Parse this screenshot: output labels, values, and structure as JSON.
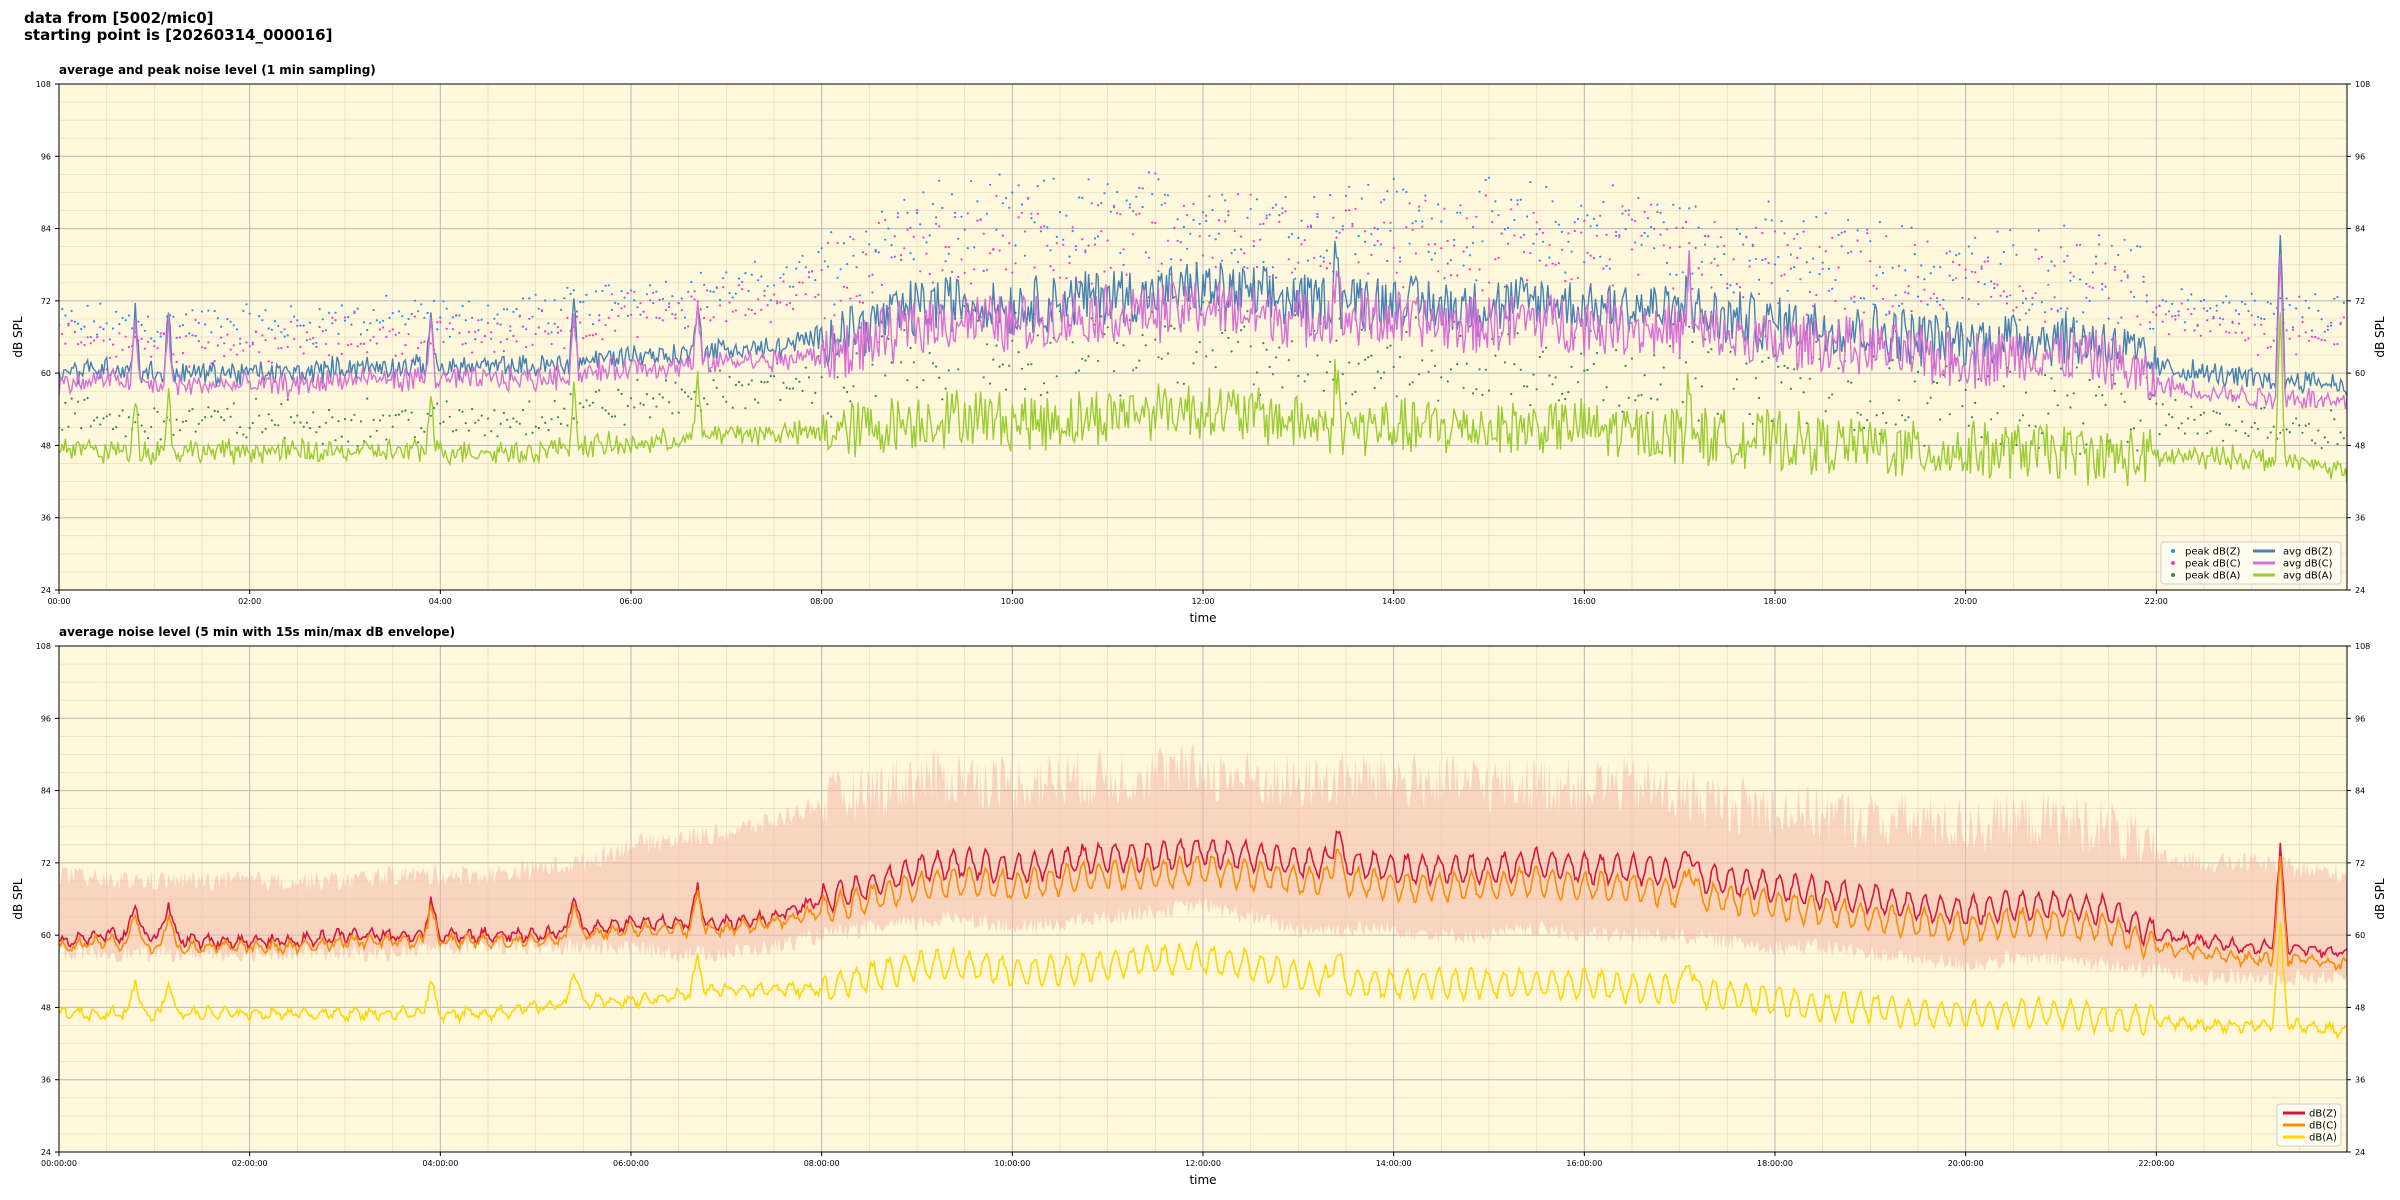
{
  "header": {
    "line1": "data from [5002/mic0]",
    "line2": "starting point is [20260314_000016]"
  },
  "colors": {
    "plot_bg": "#fff8dc",
    "peak_z": "#1e90ff",
    "peak_c": "#ff33cc",
    "peak_a": "#2e8b57",
    "avg_z": "#4682b4",
    "avg_c": "#da70d6",
    "avg_a": "#9acd32",
    "dbz": "#dc143c",
    "dbc": "#ff8c00",
    "dba": "#ffd700",
    "envelope": "#f4b8a8"
  },
  "chart_data": [
    {
      "type": "line",
      "title": "average and peak noise level (1 min sampling)",
      "xlabel": "time",
      "ylabel": "dB SPL",
      "ylim": [
        24,
        108
      ],
      "xlim_hours": [
        0,
        24
      ],
      "x_tick_labels": [
        "00:00",
        "02:00",
        "04:00",
        "06:00",
        "08:00",
        "10:00",
        "12:00",
        "14:00",
        "16:00",
        "18:00",
        "20:00",
        "22:00"
      ],
      "y_ticks": [
        24,
        36,
        48,
        60,
        72,
        84,
        96,
        108
      ],
      "grid": true,
      "legend_position": "lower-right",
      "legend": [
        "peak dB(Z)",
        "peak dB(C)",
        "peak dB(A)",
        "avg dB(Z)",
        "avg dB(C)",
        "avg dB(A)"
      ],
      "x_hours": [
        0,
        0.5,
        1,
        1.5,
        2,
        2.5,
        3,
        3.5,
        4,
        4.5,
        5,
        5.5,
        6,
        6.5,
        7,
        7.5,
        8,
        8.5,
        9,
        9.5,
        10,
        10.5,
        11,
        11.5,
        12,
        12.5,
        13,
        13.5,
        14,
        14.5,
        15,
        15.5,
        16,
        16.5,
        17,
        17.5,
        18,
        18.5,
        19,
        19.5,
        20,
        20.5,
        21,
        21.5,
        22,
        22.5,
        23,
        23.5,
        24
      ],
      "series": [
        {
          "name": "avg dB(Z)",
          "style": "line",
          "values": [
            60,
            61,
            60,
            60,
            60,
            60,
            61,
            61,
            61,
            61,
            61,
            62,
            63,
            63,
            64,
            64,
            66,
            68,
            71,
            72,
            71,
            72,
            73,
            73,
            74,
            73,
            72,
            72,
            72,
            71,
            71,
            72,
            71,
            71,
            70,
            69,
            68,
            68,
            67,
            66,
            65,
            66,
            66,
            65,
            61,
            60,
            59,
            59,
            58
          ]
        },
        {
          "name": "avg dB(C)",
          "style": "line",
          "values": [
            58,
            59,
            58,
            58,
            58,
            58,
            59,
            59,
            59,
            59,
            59,
            60,
            61,
            61,
            62,
            62,
            63,
            65,
            68,
            69,
            68,
            69,
            70,
            70,
            71,
            70,
            69,
            69,
            69,
            68,
            68,
            69,
            68,
            68,
            67,
            66,
            65,
            65,
            64,
            63,
            62,
            63,
            63,
            62,
            58,
            57,
            56,
            56,
            55
          ]
        },
        {
          "name": "avg dB(A)",
          "style": "line",
          "values": [
            48,
            47,
            47,
            47,
            47,
            47,
            47,
            47,
            47,
            47,
            47,
            48,
            48,
            49,
            50,
            50,
            50,
            51,
            52,
            53,
            52,
            52,
            53,
            54,
            54,
            53,
            52,
            51,
            51,
            51,
            51,
            51,
            51,
            50,
            50,
            49,
            49,
            48,
            48,
            47,
            47,
            47,
            47,
            46,
            46,
            46,
            46,
            45,
            44
          ]
        },
        {
          "name": "peak dB(Z)",
          "style": "scatter",
          "values": [
            68,
            68,
            68,
            68,
            68,
            68,
            69,
            69,
            69,
            69,
            70,
            71,
            73,
            73,
            74,
            75,
            78,
            81,
            84,
            85,
            84,
            85,
            85,
            86,
            86,
            85,
            84,
            85,
            85,
            84,
            84,
            84,
            84,
            84,
            82,
            81,
            80,
            79,
            78,
            77,
            76,
            77,
            77,
            76,
            72,
            71,
            70,
            70,
            70
          ]
        },
        {
          "name": "peak dB(C)",
          "style": "scatter",
          "values": [
            65,
            65,
            65,
            65,
            65,
            65,
            66,
            66,
            66,
            66,
            67,
            68,
            70,
            70,
            71,
            72,
            75,
            78,
            81,
            82,
            81,
            82,
            82,
            83,
            83,
            82,
            81,
            82,
            82,
            81,
            81,
            81,
            81,
            81,
            79,
            78,
            77,
            76,
            75,
            74,
            73,
            74,
            74,
            73,
            69,
            68,
            67,
            67,
            67
          ]
        },
        {
          "name": "peak dB(A)",
          "style": "scatter",
          "values": [
            53,
            52,
            52,
            52,
            52,
            52,
            52,
            52,
            52,
            52,
            53,
            54,
            55,
            56,
            57,
            58,
            59,
            61,
            63,
            64,
            63,
            64,
            64,
            65,
            65,
            64,
            63,
            63,
            63,
            62,
            62,
            62,
            62,
            61,
            61,
            60,
            59,
            58,
            57,
            56,
            55,
            55,
            55,
            54,
            53,
            52,
            52,
            51,
            51
          ]
        }
      ]
    },
    {
      "type": "line",
      "title": "average noise level (5 min with 15s min/max dB envelope)",
      "xlabel": "time",
      "ylabel": "dB SPL",
      "ylim": [
        24,
        108
      ],
      "xlim_hours": [
        0,
        24
      ],
      "x_tick_labels": [
        "00:00:00",
        "02:00:00",
        "04:00:00",
        "06:00:00",
        "08:00:00",
        "10:00:00",
        "12:00:00",
        "14:00:00",
        "16:00:00",
        "18:00:00",
        "20:00:00",
        "22:00:00"
      ],
      "y_ticks": [
        24,
        36,
        48,
        60,
        72,
        84,
        96,
        108
      ],
      "grid": true,
      "legend_position": "lower-right",
      "legend": [
        "dB(Z)",
        "dB(C)",
        "dB(A)"
      ],
      "x_hours": [
        0,
        0.5,
        1,
        1.5,
        2,
        2.5,
        3,
        3.5,
        4,
        4.5,
        5,
        5.5,
        6,
        6.5,
        7,
        7.5,
        8,
        8.5,
        9,
        9.5,
        10,
        10.5,
        11,
        11.5,
        12,
        12.5,
        13,
        13.5,
        14,
        14.5,
        15,
        15.5,
        16,
        16.5,
        17,
        17.5,
        18,
        18.5,
        19,
        19.5,
        20,
        20.5,
        21,
        21.5,
        22,
        22.5,
        23,
        23.5,
        24
      ],
      "envelope": {
        "min": [
          57,
          57,
          57,
          57,
          57,
          57,
          57,
          57,
          58,
          58,
          58,
          58,
          58,
          57,
          57,
          58,
          60,
          61,
          62,
          63,
          61,
          62,
          63,
          64,
          65,
          63,
          61,
          61,
          61,
          60,
          60,
          61,
          60,
          60,
          60,
          59,
          58,
          58,
          57,
          56,
          55,
          56,
          56,
          55,
          54,
          53,
          53,
          53,
          53
        ],
        "max": [
          70,
          69,
          69,
          69,
          69,
          69,
          69,
          70,
          70,
          70,
          71,
          72,
          75,
          76,
          77,
          79,
          82,
          84,
          86,
          86,
          85,
          86,
          86,
          87,
          87,
          86,
          85,
          86,
          86,
          85,
          85,
          85,
          85,
          85,
          83,
          82,
          81,
          80,
          79,
          79,
          78,
          79,
          79,
          78,
          73,
          72,
          72,
          71,
          70
        ]
      },
      "series": [
        {
          "name": "dB(Z)",
          "values": [
            59,
            60,
            60,
            59,
            59,
            59,
            60,
            60,
            60,
            60,
            60,
            61,
            62,
            62,
            62,
            63,
            66,
            68,
            71,
            72,
            71,
            72,
            73,
            73,
            74,
            73,
            72,
            72,
            71,
            71,
            71,
            72,
            71,
            71,
            70,
            69,
            68,
            67,
            66,
            65,
            64,
            65,
            65,
            64,
            60,
            59,
            58,
            58,
            57
          ]
        },
        {
          "name": "dB(C)",
          "values": [
            58,
            59,
            58,
            58,
            58,
            58,
            59,
            59,
            59,
            59,
            59,
            60,
            61,
            61,
            61,
            62,
            64,
            66,
            68,
            69,
            68,
            69,
            70,
            70,
            71,
            70,
            69,
            69,
            68,
            68,
            68,
            69,
            68,
            68,
            67,
            66,
            65,
            64,
            63,
            62,
            61,
            62,
            62,
            61,
            58,
            57,
            56,
            56,
            55
          ]
        },
        {
          "name": "dB(A)",
          "values": [
            47,
            47,
            47,
            47,
            47,
            47,
            47,
            47,
            47,
            47,
            48,
            49,
            49,
            50,
            51,
            51,
            51,
            53,
            55,
            55,
            54,
            54,
            55,
            56,
            56,
            55,
            53,
            52,
            52,
            52,
            52,
            52,
            52,
            51,
            51,
            50,
            49,
            48,
            48,
            47,
            47,
            47,
            47,
            46,
            46,
            45,
            45,
            45,
            44
          ]
        }
      ]
    }
  ]
}
